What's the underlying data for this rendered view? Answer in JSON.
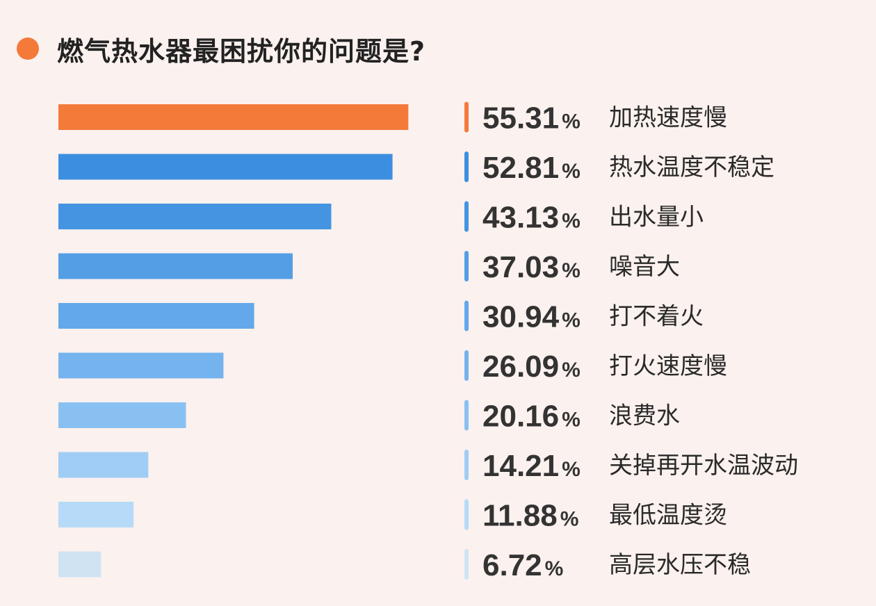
{
  "chart_data": {
    "type": "bar",
    "orientation": "horizontal",
    "title": "燃气热水器最困扰你的问题是?",
    "unit": "%",
    "categories": [
      "加热速度慢",
      "热水温度不稳定",
      "出水量小",
      "噪音大",
      "打不着火",
      "打火速度慢",
      "浪费水",
      "关掉再开水温波动",
      "最低温度烫",
      "高层水压不稳"
    ],
    "values": [
      55.31,
      52.81,
      43.13,
      37.03,
      30.94,
      26.09,
      20.16,
      14.21,
      11.88,
      6.72
    ],
    "value_labels": [
      "55.31",
      "52.81",
      "43.13",
      "37.03",
      "30.94",
      "26.09",
      "20.16",
      "14.21",
      "11.88",
      "6.72"
    ],
    "colors": [
      "#f47a3a",
      "#3c8fe0",
      "#4594e2",
      "#549ee6",
      "#62a8ea",
      "#74b3ee",
      "#89c0f2",
      "#9fcdf5",
      "#b6daf8",
      "#cfe3f3"
    ],
    "grid": false,
    "legend": "none"
  },
  "accent_color": "#f47a3a",
  "icons": {
    "title_bullet": "orange-dot-icon"
  }
}
